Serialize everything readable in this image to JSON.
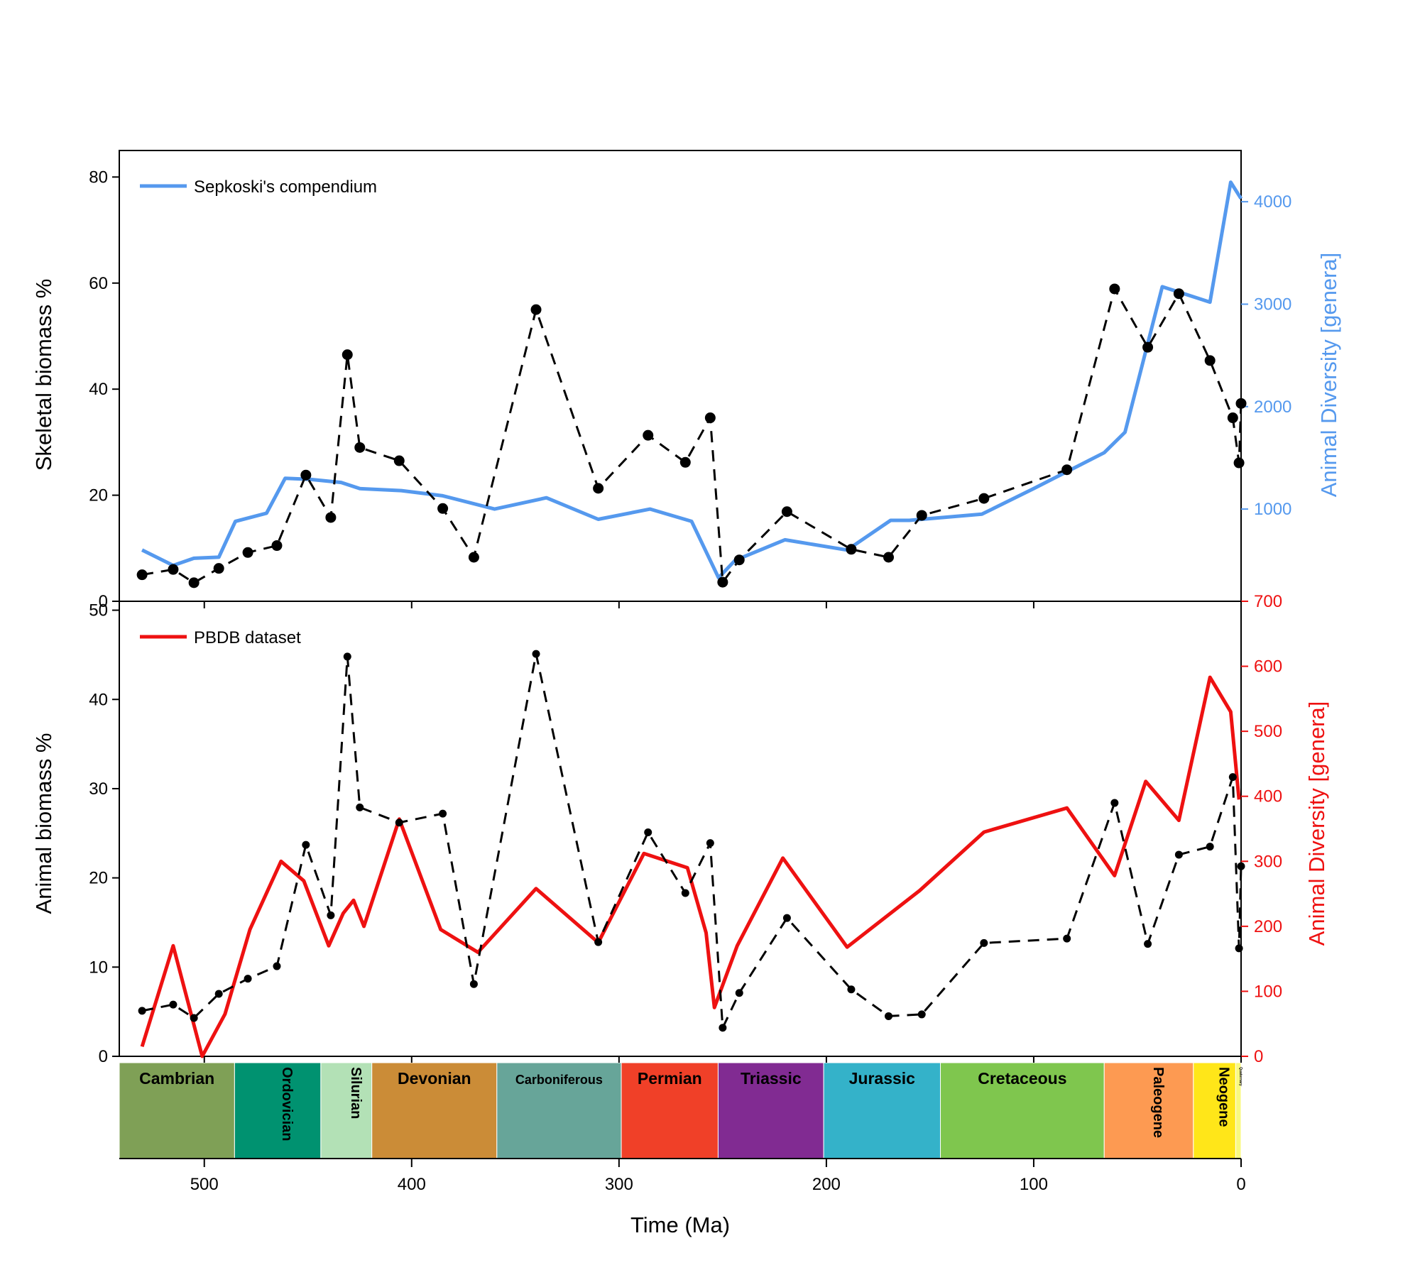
{
  "chart_data": [
    {
      "type": "line",
      "panel": "top",
      "ylabel": "Skeletal biomass %",
      "y2label": "Animal Diversity [genera]",
      "ylim": [
        0,
        85
      ],
      "y2lim": [
        100,
        4500
      ],
      "yticks": [
        0,
        20,
        40,
        60,
        80
      ],
      "y2ticks": [
        1000,
        2000,
        3000,
        4000
      ],
      "legend": "top-left",
      "colors": {
        "diversity": "#5599ee",
        "biomass": "#000000"
      },
      "series": [
        {
          "name": "Sepkoski's compendium",
          "axis": "right",
          "x": [
            530,
            515,
            505,
            493,
            485,
            470,
            461,
            449,
            434,
            425,
            405,
            385,
            360,
            335,
            310,
            285,
            265,
            252,
            244,
            220,
            190,
            169,
            160,
            125,
            100,
            66,
            56,
            38,
            15,
            5,
            0
          ],
          "y": [
            600,
            450,
            520,
            530,
            880,
            960,
            1300,
            1290,
            1260,
            1200,
            1180,
            1130,
            1000,
            1110,
            900,
            1000,
            880,
            330,
            500,
            700,
            600,
            890,
            890,
            950,
            1200,
            1550,
            1750,
            3170,
            3020,
            4190,
            4030
          ]
        },
        {
          "name": "",
          "axis": "left",
          "style": "dashed-markers",
          "x": [
            530,
            515,
            505,
            493,
            479,
            465,
            451,
            439,
            431,
            425,
            406,
            385,
            370,
            340,
            310,
            286,
            268,
            256,
            250,
            242,
            219,
            188,
            170,
            154,
            124,
            84,
            61,
            45,
            30,
            15,
            4,
            1,
            0
          ],
          "y": [
            5,
            6,
            3.5,
            6.2,
            9.2,
            10.5,
            23.8,
            15.8,
            46.5,
            29,
            26.5,
            17.5,
            8.3,
            55,
            21.3,
            31.3,
            26.2,
            34.6,
            3.6,
            7.8,
            16.9,
            9.8,
            8.3,
            16.2,
            19.4,
            24.8,
            58.9,
            47.9,
            58,
            45.4,
            34.6,
            26.1,
            37.3
          ]
        }
      ]
    },
    {
      "type": "line",
      "panel": "bottom",
      "xlabel": "Time (Ma)",
      "ylabel": "Animal biomass %",
      "y2label": "Animal Diversity [genera]",
      "xlim": [
        541,
        0
      ],
      "xticks": [
        500,
        400,
        300,
        200,
        100,
        0
      ],
      "ylim": [
        0,
        51
      ],
      "y2lim": [
        0,
        700
      ],
      "yticks": [
        0,
        10,
        20,
        30,
        40,
        50
      ],
      "y2ticks": [
        0,
        100,
        200,
        300,
        400,
        500,
        600,
        700
      ],
      "legend": "top-left",
      "colors": {
        "diversity": "#ee1111",
        "biomass": "#000000"
      },
      "series": [
        {
          "name": "PBDB dataset",
          "axis": "right",
          "x": [
            530,
            515,
            501,
            490,
            478,
            463,
            452,
            440,
            433,
            428,
            423,
            406,
            386,
            368,
            340,
            310,
            288,
            267,
            258,
            254,
            243,
            221,
            190,
            155,
            124,
            84,
            61,
            46,
            30,
            15,
            5,
            1
          ],
          "y": [
            15,
            170,
            0,
            65,
            195,
            300,
            270,
            170,
            220,
            240,
            200,
            365,
            195,
            160,
            258,
            175,
            312,
            290,
            190,
            75,
            170,
            305,
            168,
            255,
            345,
            382,
            278,
            423,
            363,
            583,
            530,
            395
          ]
        },
        {
          "name": "",
          "axis": "left",
          "style": "dashed-markers",
          "x": [
            530,
            515,
            505,
            493,
            479,
            465,
            451,
            439,
            431,
            425,
            406,
            385,
            370,
            340,
            310,
            286,
            268,
            256,
            250,
            242,
            219,
            188,
            170,
            154,
            124,
            84,
            61,
            45,
            30,
            15,
            4,
            1,
            0
          ],
          "y": [
            5.1,
            5.8,
            4.3,
            7,
            8.7,
            10.1,
            23.7,
            15.8,
            44.8,
            27.9,
            26.2,
            27.2,
            8.1,
            45.1,
            12.8,
            25.1,
            18.3,
            23.9,
            3.2,
            7.1,
            15.5,
            7.5,
            4.5,
            4.7,
            12.7,
            13.2,
            28.4,
            12.6,
            22.6,
            23.5,
            31.3,
            12.1,
            21.3
          ]
        }
      ]
    }
  ],
  "timescale": {
    "periods": [
      {
        "name": "Cambrian",
        "start": 541,
        "end": 485.4,
        "color": "#7fa056",
        "vertical": false
      },
      {
        "name": "Ordovician",
        "start": 485.4,
        "end": 443.8,
        "color": "#009270",
        "vertical": true
      },
      {
        "name": "Silurian",
        "start": 443.8,
        "end": 419.2,
        "color": "#b3e1b6",
        "vertical": true
      },
      {
        "name": "Devonian",
        "start": 419.2,
        "end": 358.9,
        "color": "#cb8c37",
        "vertical": false
      },
      {
        "name": "Carboniferous",
        "start": 358.9,
        "end": 298.9,
        "color": "#67a599",
        "vertical": false
      },
      {
        "name": "Permian",
        "start": 298.9,
        "end": 252.2,
        "color": "#f04028",
        "vertical": false
      },
      {
        "name": "Triassic",
        "start": 252.2,
        "end": 201.3,
        "color": "#812b92",
        "vertical": false
      },
      {
        "name": "Jurassic",
        "start": 201.3,
        "end": 145,
        "color": "#34b2c9",
        "vertical": false
      },
      {
        "name": "Cretaceous",
        "start": 145,
        "end": 66,
        "color": "#7fc64e",
        "vertical": false
      },
      {
        "name": "Paleogene",
        "start": 66,
        "end": 23,
        "color": "#fd9a52",
        "vertical": true
      },
      {
        "name": "Neogene",
        "start": 23,
        "end": 2.6,
        "color": "#ffe619",
        "vertical": true
      },
      {
        "name": "Quaternary",
        "start": 2.6,
        "end": 0,
        "color": "#f9f97f",
        "vertical": true
      }
    ]
  }
}
